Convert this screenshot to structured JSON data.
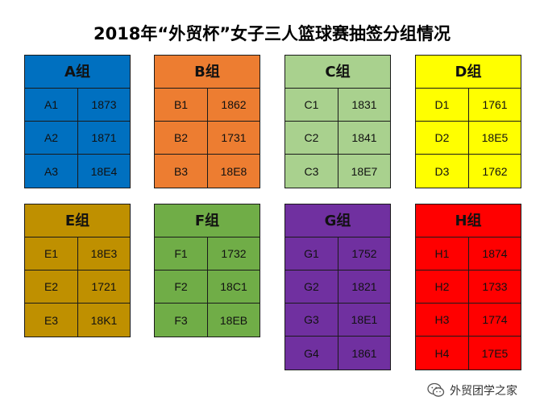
{
  "title": "2018年“外贸杯”女子三人篮球赛抽签分组情况",
  "groups": [
    {
      "name": "A组",
      "color": "#0070c0",
      "rows": [
        [
          "A1",
          "1873"
        ],
        [
          "A2",
          "1871"
        ],
        [
          "A3",
          "18E4"
        ]
      ]
    },
    {
      "name": "B组",
      "color": "#ed7d31",
      "rows": [
        [
          "B1",
          "1862"
        ],
        [
          "B2",
          "1731"
        ],
        [
          "B3",
          "18E8"
        ]
      ]
    },
    {
      "name": "C组",
      "color": "#a9d18e",
      "rows": [
        [
          "C1",
          "1831"
        ],
        [
          "C2",
          "1841"
        ],
        [
          "C3",
          "18E7"
        ]
      ]
    },
    {
      "name": "D组",
      "color": "#ffff00",
      "rows": [
        [
          "D1",
          "1761"
        ],
        [
          "D2",
          "18E5"
        ],
        [
          "D3",
          "1762"
        ]
      ]
    },
    {
      "name": "E组",
      "color": "#bf9000",
      "rows": [
        [
          "E1",
          "18E3"
        ],
        [
          "E2",
          "1721"
        ],
        [
          "E3",
          "18K1"
        ]
      ]
    },
    {
      "name": "F组",
      "color": "#70ad47",
      "rows": [
        [
          "F1",
          "1732"
        ],
        [
          "F2",
          "18C1"
        ],
        [
          "F3",
          "18EB"
        ]
      ]
    },
    {
      "name": "G组",
      "color": "#7030a0",
      "rows": [
        [
          "G1",
          "1752"
        ],
        [
          "G2",
          "1821"
        ],
        [
          "G3",
          "18E1"
        ],
        [
          "G4",
          "1861"
        ]
      ]
    },
    {
      "name": "H组",
      "color": "#ff0000",
      "rows": [
        [
          "H1",
          "1874"
        ],
        [
          "H2",
          "1733"
        ],
        [
          "H3",
          "1774"
        ],
        [
          "H4",
          "17E5"
        ]
      ]
    }
  ],
  "watermark": {
    "text": "外贸团学之家",
    "icon": "wechat-icon"
  }
}
